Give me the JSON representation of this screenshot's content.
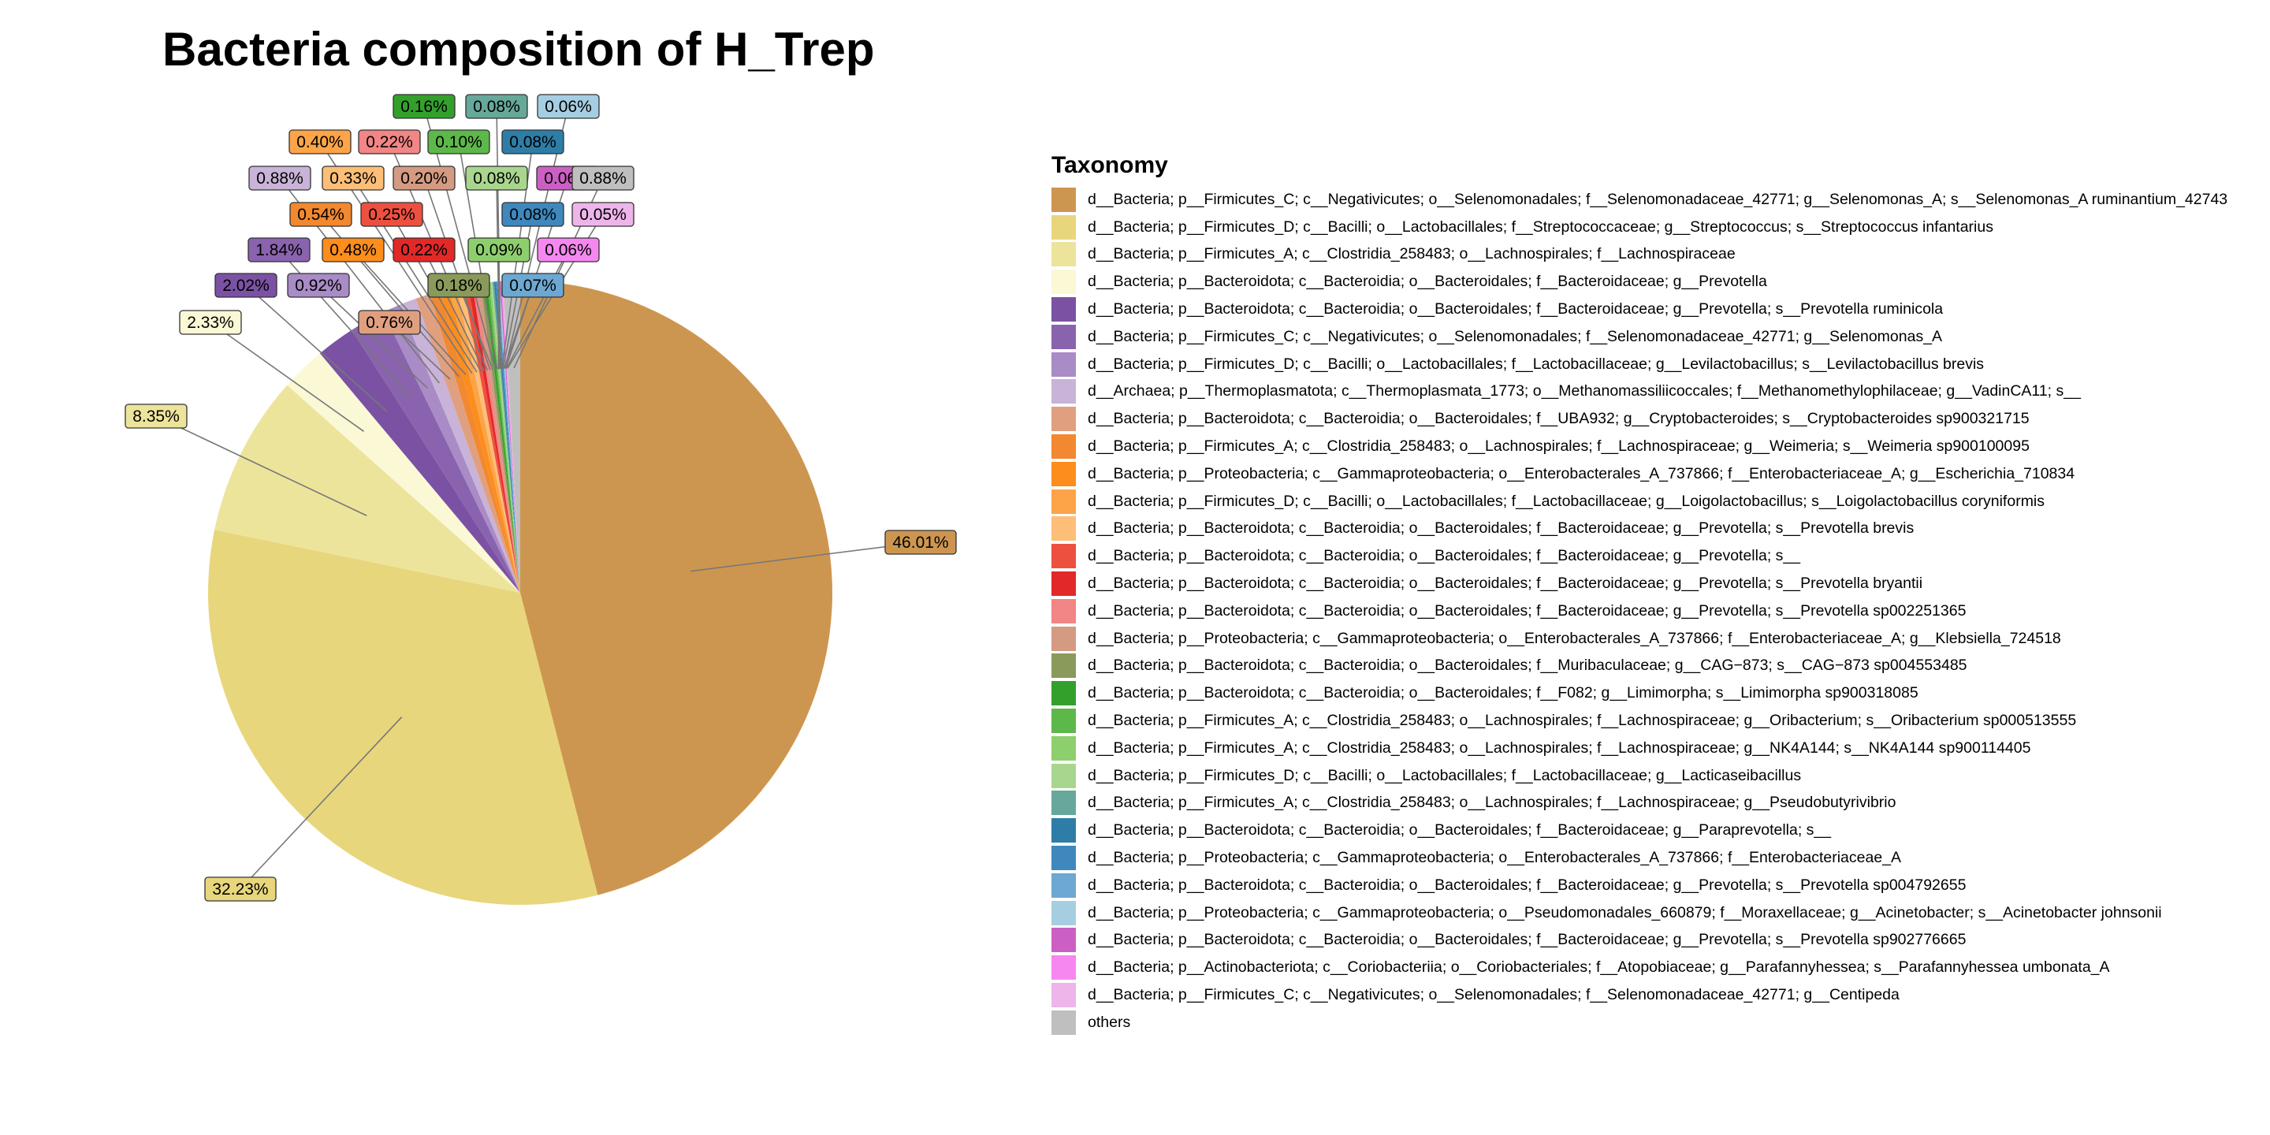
{
  "chart_data": {
    "type": "pie",
    "title": "Bacteria composition of H_Trep",
    "legend_title": "Taxonomy",
    "legend_position": "right",
    "start": "12 o'clock, clockwise",
    "slices": [
      {
        "name": "d__Bacteria; p__Firmicutes_C; c__Negativicutes; o__Selenomonadales; f__Selenomonadaceae_42771; g__Selenomonas_A; s__Selenomonas_A ruminantium_42743",
        "value": 46.01,
        "label": "46.01%",
        "color": "#CD9650"
      },
      {
        "name": "d__Bacteria; p__Firmicutes_D; c__Bacilli; o__Lactobacillales; f__Streptococcaceae; g__Streptococcus; s__Streptococcus infantarius",
        "value": 32.23,
        "label": "32.23%",
        "color": "#E8D67C"
      },
      {
        "name": "d__Bacteria; p__Firmicutes_A; c__Clostridia_258483; o__Lachnospirales; f__Lachnospiraceae",
        "value": 8.35,
        "label": "8.35%",
        "color": "#EDE49C"
      },
      {
        "name": "d__Bacteria; p__Bacteroidota; c__Bacteroidia; o__Bacteroidales; f__Bacteroidaceae; g__Prevotella",
        "value": 2.33,
        "label": "2.33%",
        "color": "#FBF8D6"
      },
      {
        "name": "d__Bacteria; p__Bacteroidota; c__Bacteroidia; o__Bacteroidales; f__Bacteroidaceae; g__Prevotella; s__Prevotella ruminicola",
        "value": 2.02,
        "label": "2.02%",
        "color": "#7B52A3"
      },
      {
        "name": "d__Bacteria; p__Firmicutes_C; c__Negativicutes; o__Selenomonadales; f__Selenomonadaceae_42771; g__Selenomonas_A",
        "value": 1.84,
        "label": "1.84%",
        "color": "#8A63AF"
      },
      {
        "name": "d__Bacteria; p__Firmicutes_D; c__Bacilli; o__Lactobacillales; f__Lactobacillaceae; g__Levilactobacillus; s__Levilactobacillus brevis",
        "value": 0.92,
        "label": "0.92%",
        "color": "#A98BC6"
      },
      {
        "name": "d__Archaea; p__Thermoplasmatota; c__Thermoplasmata_1773; o__Methanomassiliicoccales; f__Methanomethylophilaceae; g__VadinCA11; s__",
        "value": 0.88,
        "label": "0.88%",
        "color": "#C9B3D8"
      },
      {
        "name": "d__Bacteria; p__Bacteroidota; c__Bacteroidia; o__Bacteroidales; f__UBA932; g__Cryptobacteroides; s__Cryptobacteroides sp900321715",
        "value": 0.76,
        "label": "0.76%",
        "color": "#E0A080"
      },
      {
        "name": "d__Bacteria; p__Firmicutes_A; c__Clostridia_258483; o__Lachnospirales; f__Lachnospiraceae; g__Weimeria; s__Weimeria sp900100095",
        "value": 0.54,
        "label": "0.54%",
        "color": "#F2882F"
      },
      {
        "name": "d__Bacteria; p__Proteobacteria; c__Gammaproteobacteria; o__Enterobacterales_A_737866; f__Enterobacteriaceae_A; g__Escherichia_710834",
        "value": 0.48,
        "label": "0.48%",
        "color": "#FD8D1C"
      },
      {
        "name": "d__Bacteria; p__Firmicutes_D; c__Bacilli; o__Lactobacillales; f__Lactobacillaceae; g__Loigolactobacillus; s__Loigolactobacillus coryniformis",
        "value": 0.4,
        "label": "0.40%",
        "color": "#FDA448"
      },
      {
        "name": "d__Bacteria; p__Bacteroidota; c__Bacteroidia; o__Bacteroidales; f__Bacteroidaceae; g__Prevotella; s__Prevotella brevis",
        "value": 0.33,
        "label": "0.33%",
        "color": "#FDBE78"
      },
      {
        "name": "d__Bacteria; p__Bacteroidota; c__Bacteroidia; o__Bacteroidales; f__Bacteroidaceae; g__Prevotella; s__",
        "value": 0.25,
        "label": "0.25%",
        "color": "#EE5040"
      },
      {
        "name": "d__Bacteria; p__Bacteroidota; c__Bacteroidia; o__Bacteroidales; f__Bacteroidaceae; g__Prevotella; s__Prevotella bryantii",
        "value": 0.22,
        "label": "0.22%",
        "color": "#E32828"
      },
      {
        "name": "d__Bacteria; p__Bacteroidota; c__Bacteroidia; o__Bacteroidales; f__Bacteroidaceae; g__Prevotella; s__Prevotella sp002251365",
        "value": 0.22,
        "label": "0.22%",
        "color": "#F28585"
      },
      {
        "name": "d__Bacteria; p__Proteobacteria; c__Gammaproteobacteria; o__Enterobacterales_A_737866; f__Enterobacteriaceae_A; g__Klebsiella_724518",
        "value": 0.2,
        "label": "0.20%",
        "color": "#D49A82"
      },
      {
        "name": "d__Bacteria; p__Bacteroidota; c__Bacteroidia; o__Bacteroidales; f__Muribaculaceae; g__CAG−873; s__CAG−873 sp004553485",
        "value": 0.18,
        "label": "0.18%",
        "color": "#8A9A5B"
      },
      {
        "name": "d__Bacteria; p__Bacteroidota; c__Bacteroidia; o__Bacteroidales; f__F082; g__Limimorpha; s__Limimorpha sp900318085",
        "value": 0.16,
        "label": "0.16%",
        "color": "#33A02C"
      },
      {
        "name": "d__Bacteria; p__Firmicutes_A; c__Clostridia_258483; o__Lachnospirales; f__Lachnospiraceae; g__Oribacterium; s__Oribacterium sp000513555",
        "value": 0.1,
        "label": "0.10%",
        "color": "#5DB84A"
      },
      {
        "name": "d__Bacteria; p__Firmicutes_A; c__Clostridia_258483; o__Lachnospirales; f__Lachnospiraceae; g__NK4A144; s__NK4A144 sp900114405",
        "value": 0.09,
        "label": "0.09%",
        "color": "#8ECF6D"
      },
      {
        "name": "d__Bacteria; p__Firmicutes_D; c__Bacilli; o__Lactobacillales; f__Lactobacillaceae; g__Lacticaseibacillus",
        "value": 0.08,
        "label": "0.08%",
        "color": "#A9D68E"
      },
      {
        "name": "d__Bacteria; p__Firmicutes_A; c__Clostridia_258483; o__Lachnospirales; f__Lachnospiraceae; g__Pseudobutyrivibrio",
        "value": 0.08,
        "label": "0.08%",
        "color": "#66A89A"
      },
      {
        "name": "d__Bacteria; p__Bacteroidota; c__Bacteroidia; o__Bacteroidales; f__Bacteroidaceae; g__Paraprevotella; s__",
        "value": 0.08,
        "label": "0.08%",
        "color": "#2E7DA7"
      },
      {
        "name": "d__Bacteria; p__Proteobacteria; c__Gammaproteobacteria; o__Enterobacterales_A_737866; f__Enterobacteriaceae_A",
        "value": 0.08,
        "label": "0.08%",
        "color": "#3E88BE"
      },
      {
        "name": "d__Bacteria; p__Bacteroidota; c__Bacteroidia; o__Bacteroidales; f__Bacteroidaceae; g__Prevotella; s__Prevotella sp004792655",
        "value": 0.07,
        "label": "0.07%",
        "color": "#6CA8D2"
      },
      {
        "name": "d__Bacteria; p__Proteobacteria; c__Gammaproteobacteria; o__Pseudomonadales_660879; f__Moraxellaceae; g__Acinetobacter; s__Acinetobacter johnsonii",
        "value": 0.06,
        "label": "0.06%",
        "color": "#A6CEE3"
      },
      {
        "name": "d__Bacteria; p__Bacteroidota; c__Bacteroidia; o__Bacteroidales; f__Bacteroidaceae; g__Prevotella; s__Prevotella sp902776665",
        "value": 0.06,
        "label": "0.06%",
        "color": "#CC5FC4"
      },
      {
        "name": "d__Bacteria; p__Actinobacteriota; c__Coriobacteriia; o__Coriobacteriales; f__Atopobiaceae; g__Parafannyhessea; s__Parafannyhessea umbonata_A",
        "value": 0.06,
        "label": "0.06%",
        "color": "#F787F0"
      },
      {
        "name": "d__Bacteria; p__Firmicutes_C; c__Negativicutes; o__Selenomonadales; f__Selenomonadaceae_42771; g__Centipeda",
        "value": 0.05,
        "label": "0.05%",
        "color": "#EDB5EA"
      },
      {
        "name": "others",
        "value": 0.88,
        "label": "0.88%",
        "color": "#BFBFBF"
      }
    ]
  }
}
